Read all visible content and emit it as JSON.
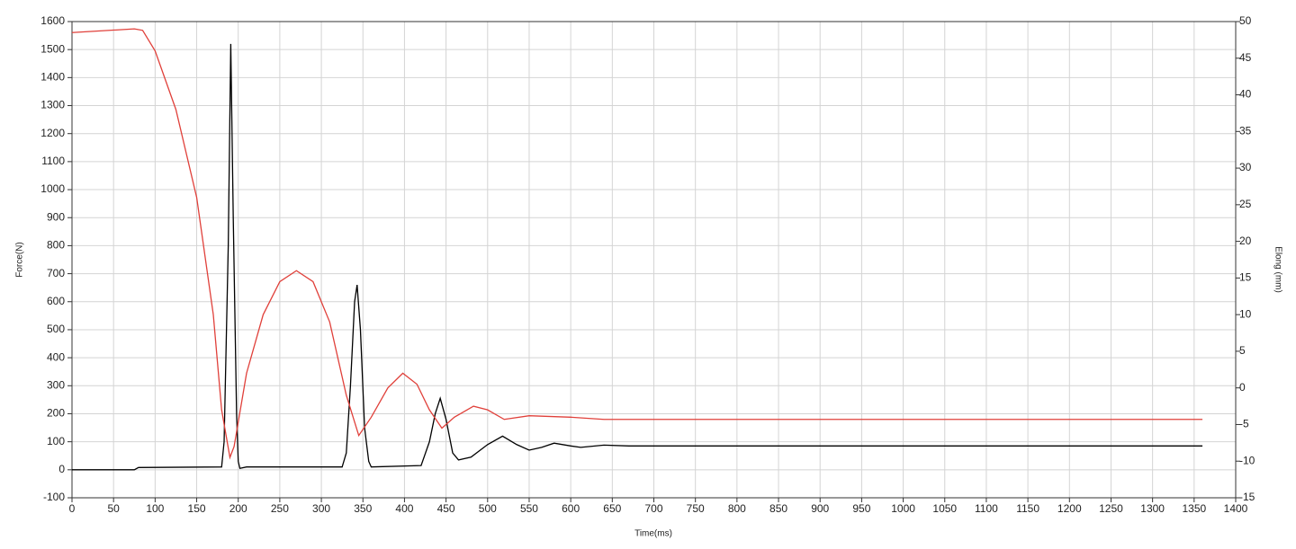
{
  "chart_data": {
    "type": "line",
    "x_label": "Time(ms)",
    "y_label": "Force(N)",
    "y2_label": "Elong (mm)",
    "xlim": [
      0,
      1400
    ],
    "xticks": [
      0,
      50,
      100,
      150,
      200,
      250,
      300,
      350,
      400,
      450,
      500,
      550,
      600,
      650,
      700,
      750,
      800,
      850,
      900,
      950,
      1000,
      1050,
      1100,
      1150,
      1200,
      1250,
      1300,
      1350,
      1400
    ],
    "ylim": [
      -100,
      1600
    ],
    "yticks": [
      -100,
      0,
      100,
      200,
      300,
      400,
      500,
      600,
      700,
      800,
      900,
      1000,
      1100,
      1200,
      1300,
      1400,
      1500,
      1600
    ],
    "y2lim": [
      -15,
      50
    ],
    "y2ticks": [
      -15,
      -10,
      -5,
      0,
      5,
      10,
      15,
      20,
      25,
      30,
      35,
      40,
      45,
      50
    ],
    "grid": true,
    "series": [
      {
        "color": "#000000",
        "axis": "y",
        "x": [
          0,
          75,
          80,
          180,
          183,
          188,
          191,
          194,
          198,
          200,
          202,
          210,
          325,
          330,
          335,
          340,
          343,
          347,
          352,
          357,
          360,
          420,
          430,
          437,
          443,
          450,
          458,
          465,
          480,
          500,
          518,
          535,
          550,
          565,
          580,
          600,
          612,
          640,
          670,
          700,
          1360
        ],
        "values": [
          0,
          0,
          8,
          10,
          100,
          800,
          1520,
          900,
          200,
          30,
          5,
          10,
          10,
          60,
          300,
          600,
          660,
          500,
          150,
          30,
          10,
          15,
          100,
          200,
          255,
          180,
          60,
          35,
          45,
          90,
          120,
          90,
          70,
          80,
          95,
          85,
          80,
          88,
          85,
          85,
          85
        ]
      },
      {
        "color": "#e0403a",
        "axis": "y2",
        "x": [
          0,
          75,
          85,
          100,
          125,
          150,
          170,
          180,
          190,
          195,
          210,
          230,
          250,
          270,
          290,
          310,
          330,
          345,
          360,
          380,
          398,
          415,
          430,
          445,
          460,
          483,
          500,
          520,
          550,
          600,
          640,
          1360
        ],
        "values": [
          48.5,
          49,
          48.8,
          46,
          38,
          26,
          10,
          -3,
          -9.5,
          -8,
          2,
          10,
          14.5,
          16,
          14.5,
          9,
          -1,
          -6.5,
          -4,
          0,
          2,
          0.5,
          -3,
          -5.5,
          -4,
          -2.5,
          -3,
          -4.3,
          -3.8,
          -4,
          -4.3,
          -4.3
        ]
      }
    ]
  }
}
